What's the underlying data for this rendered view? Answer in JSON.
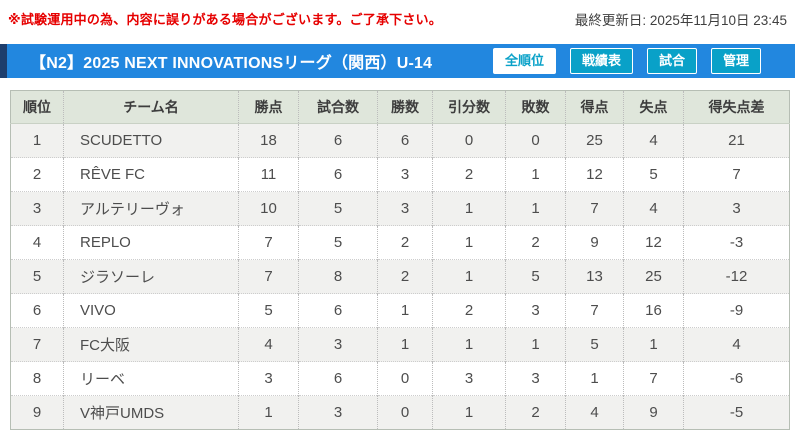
{
  "notice": "※試験運用中の為、内容に誤りがある場合がございます。ご了承下さい。",
  "last_updated": "最終更新日: 2025年11月10日 23:45",
  "league_header": {
    "title": "【N2】2025 NEXT INNOVATIONSリーグ（関西）U-14",
    "nav_buttons": [
      {
        "label": "全順位",
        "active": true
      },
      {
        "label": "戦績表",
        "active": false
      },
      {
        "label": "試合",
        "active": false
      },
      {
        "label": "管理",
        "active": false
      }
    ]
  },
  "colors": {
    "notice_red": "#e60000",
    "bar_blue": "#2287df",
    "bar_navy_strip": "#1d3e6d",
    "button_teal": "#09a1c8",
    "header_row_bg": "#dfe6db",
    "odd_row_bg": "#f1f1ef",
    "even_row_bg": "#ffffff"
  },
  "standings": {
    "columns": [
      "順位",
      "チーム名",
      "勝点",
      "試合数",
      "勝数",
      "引分数",
      "敗数",
      "得点",
      "失点",
      "得失点差"
    ],
    "row_keys": [
      "rank",
      "team",
      "points",
      "played",
      "wins",
      "draws",
      "losses",
      "goals_for",
      "goals_against",
      "goal_diff"
    ],
    "rows": [
      {
        "rank": "1",
        "team": "SCUDETTO",
        "points": "18",
        "played": "6",
        "wins": "6",
        "draws": "0",
        "losses": "0",
        "goals_for": "25",
        "goals_against": "4",
        "goal_diff": "21"
      },
      {
        "rank": "2",
        "team": "RÊVE FC",
        "points": "11",
        "played": "6",
        "wins": "3",
        "draws": "2",
        "losses": "1",
        "goals_for": "12",
        "goals_against": "5",
        "goal_diff": "7"
      },
      {
        "rank": "3",
        "team": "アルテリーヴォ",
        "points": "10",
        "played": "5",
        "wins": "3",
        "draws": "1",
        "losses": "1",
        "goals_for": "7",
        "goals_against": "4",
        "goal_diff": "3"
      },
      {
        "rank": "4",
        "team": "REPLO",
        "points": "7",
        "played": "5",
        "wins": "2",
        "draws": "1",
        "losses": "2",
        "goals_for": "9",
        "goals_against": "12",
        "goal_diff": "-3"
      },
      {
        "rank": "5",
        "team": "ジラソーレ",
        "points": "7",
        "played": "8",
        "wins": "2",
        "draws": "1",
        "losses": "5",
        "goals_for": "13",
        "goals_against": "25",
        "goal_diff": "-12"
      },
      {
        "rank": "6",
        "team": "VIVO",
        "points": "5",
        "played": "6",
        "wins": "1",
        "draws": "2",
        "losses": "3",
        "goals_for": "7",
        "goals_against": "16",
        "goal_diff": "-9"
      },
      {
        "rank": "7",
        "team": "FC大阪",
        "points": "4",
        "played": "3",
        "wins": "1",
        "draws": "1",
        "losses": "1",
        "goals_for": "5",
        "goals_against": "1",
        "goal_diff": "4"
      },
      {
        "rank": "8",
        "team": "リーベ",
        "points": "3",
        "played": "6",
        "wins": "0",
        "draws": "3",
        "losses": "3",
        "goals_for": "1",
        "goals_against": "7",
        "goal_diff": "-6"
      },
      {
        "rank": "9",
        "team": "V神戸UMDS",
        "points": "1",
        "played": "3",
        "wins": "0",
        "draws": "1",
        "losses": "2",
        "goals_for": "4",
        "goals_against": "9",
        "goal_diff": "-5"
      }
    ]
  }
}
